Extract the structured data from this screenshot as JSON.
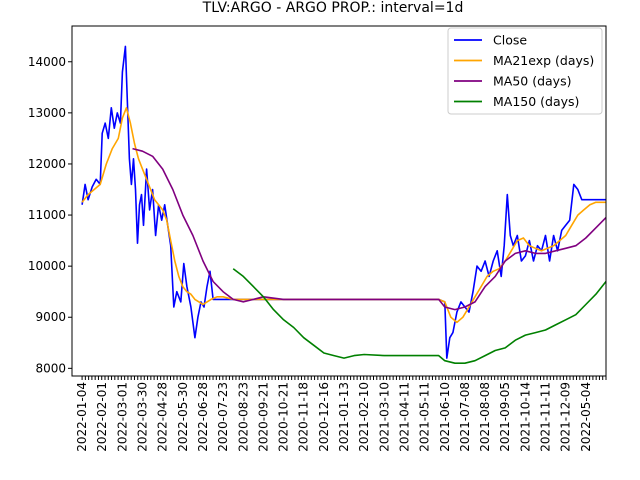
{
  "chart_data": {
    "type": "line",
    "title": "TLV:ARGO - ARGO PROP.: interval=1d",
    "xlabel": "",
    "ylabel": "",
    "ylim": [
      7850,
      14700
    ],
    "yticks": [
      8000,
      9000,
      10000,
      11000,
      12000,
      13000,
      14000
    ],
    "ytick_labels": [
      "8000",
      "9000",
      "10000",
      "11000",
      "12000",
      "13000",
      "14000"
    ],
    "xlim": [
      -0.5,
      26.0
    ],
    "xticks": [
      "2022-01-04",
      "2022-02-01",
      "2022-03-01",
      "2022-03-30",
      "2022-04-28",
      "2022-05-30",
      "2022-06-28",
      "2020-07-23",
      "2020-08-23",
      "2020-09-21",
      "2020-10-21",
      "2020-11-18",
      "2020-12-16",
      "2021-01-13",
      "2021-02-10",
      "2021-03-10",
      "2021-04-11",
      "2021-05-11",
      "2021-06-10",
      "2021-07-08",
      "2021-08-08",
      "2021-09-05",
      "2021-10-14",
      "2021-11-11",
      "2021-12-09",
      "2022-05-04"
    ],
    "grid": false,
    "legend": "top-right",
    "series": [
      {
        "name": "Close",
        "color": "#0000ff",
        "x": [
          0.0,
          0.15,
          0.3,
          0.5,
          0.7,
          0.9,
          1.0,
          1.15,
          1.3,
          1.45,
          1.6,
          1.75,
          1.9,
          2.0,
          2.15,
          2.25,
          2.35,
          2.45,
          2.55,
          2.65,
          2.75,
          2.85,
          2.95,
          3.05,
          3.2,
          3.35,
          3.5,
          3.65,
          3.8,
          3.95,
          4.1,
          4.25,
          4.4,
          4.55,
          4.7,
          4.9,
          5.05,
          5.2,
          5.4,
          5.6,
          5.75,
          5.9,
          6.05,
          6.2,
          6.35,
          6.5,
          6.65,
          6.8,
          6.95,
          7.1,
          7.3,
          7.5,
          7.7,
          8.0,
          9.0,
          10.0,
          11.0,
          12.0,
          13.0,
          14.0,
          15.0,
          16.0,
          17.0,
          17.7,
          18.0,
          18.1,
          18.25,
          18.4,
          18.6,
          18.8,
          19.0,
          19.2,
          19.4,
          19.6,
          19.8,
          20.0,
          20.2,
          20.4,
          20.6,
          20.8,
          20.95,
          21.1,
          21.25,
          21.4,
          21.6,
          21.8,
          22.0,
          22.2,
          22.4,
          22.6,
          22.8,
          23.0,
          23.2,
          23.4,
          23.6,
          23.8,
          24.0,
          24.2,
          24.4,
          24.6,
          24.8,
          25.0,
          25.2,
          25.5,
          26.0
        ],
        "y": [
          11200,
          11600,
          11300,
          11550,
          11700,
          11600,
          12600,
          12800,
          12500,
          13100,
          12700,
          13000,
          12800,
          13800,
          14300,
          13200,
          12100,
          11600,
          12100,
          11500,
          10450,
          11200,
          11400,
          10800,
          11900,
          11100,
          11500,
          10600,
          11200,
          10900,
          11200,
          10800,
          10400,
          9200,
          9500,
          9300,
          10050,
          9600,
          9200,
          8600,
          9000,
          9300,
          9200,
          9600,
          9900,
          9350,
          9350,
          9350,
          9350,
          9350,
          9350,
          9350,
          9350,
          9350,
          9350,
          9350,
          9350,
          9350,
          9350,
          9350,
          9350,
          9350,
          9350,
          9350,
          9300,
          8200,
          8600,
          8700,
          9100,
          9300,
          9200,
          9100,
          9500,
          10000,
          9900,
          10100,
          9800,
          10100,
          10300,
          9800,
          10400,
          11400,
          10600,
          10400,
          10600,
          10100,
          10200,
          10500,
          10100,
          10400,
          10300,
          10600,
          10100,
          10600,
          10300,
          10700,
          10800,
          10900,
          11600,
          11500,
          11300,
          11300,
          11300,
          11300,
          11300
        ]
      },
      {
        "name": "MA21exp (days)",
        "color": "#ffa500",
        "x": [
          0.0,
          0.3,
          0.6,
          0.9,
          1.2,
          1.5,
          1.8,
          2.0,
          2.2,
          2.4,
          2.6,
          2.8,
          3.0,
          3.2,
          3.4,
          3.6,
          3.8,
          4.0,
          4.2,
          4.4,
          4.6,
          4.8,
          5.0,
          5.2,
          5.4,
          5.6,
          5.8,
          6.0,
          6.2,
          6.4,
          6.7,
          7.0,
          7.5,
          8.0,
          9.0,
          10.0,
          11.0,
          12.0,
          13.0,
          14.0,
          15.0,
          16.0,
          17.0,
          17.7,
          18.0,
          18.3,
          18.6,
          18.9,
          19.2,
          19.5,
          19.8,
          20.1,
          20.4,
          20.7,
          21.0,
          21.3,
          21.6,
          21.9,
          22.2,
          22.5,
          22.8,
          23.1,
          23.4,
          23.7,
          24.0,
          24.3,
          24.6,
          24.9,
          25.2,
          25.5,
          26.0
        ],
        "y": [
          11250,
          11400,
          11500,
          11600,
          12000,
          12300,
          12500,
          12900,
          13100,
          12800,
          12400,
          12100,
          11900,
          11700,
          11500,
          11300,
          11200,
          11100,
          10900,
          10500,
          10100,
          9800,
          9600,
          9500,
          9450,
          9350,
          9300,
          9250,
          9300,
          9350,
          9400,
          9400,
          9350,
          9350,
          9350,
          9350,
          9350,
          9350,
          9350,
          9350,
          9350,
          9350,
          9350,
          9350,
          9300,
          9000,
          8900,
          9000,
          9200,
          9400,
          9600,
          9800,
          9900,
          9950,
          10100,
          10300,
          10500,
          10550,
          10400,
          10350,
          10300,
          10350,
          10400,
          10500,
          10600,
          10800,
          11000,
          11100,
          11200,
          11250,
          11250
        ]
      },
      {
        "name": "MA50 (days)",
        "color": "#800080",
        "x": [
          2.5,
          3.0,
          3.5,
          4.0,
          4.5,
          5.0,
          5.5,
          6.0,
          6.5,
          7.0,
          7.5,
          8.0,
          8.5,
          9.0,
          10.0,
          11.0,
          12.0,
          13.0,
          14.0,
          15.0,
          16.0,
          17.0,
          17.7,
          18.0,
          18.5,
          19.0,
          19.5,
          20.0,
          20.5,
          21.0,
          21.5,
          22.0,
          22.5,
          23.0,
          23.5,
          24.0,
          24.5,
          25.0,
          25.5,
          26.0
        ],
        "y": [
          12300,
          12250,
          12150,
          11900,
          11500,
          11000,
          10600,
          10100,
          9700,
          9500,
          9350,
          9300,
          9350,
          9400,
          9350,
          9350,
          9350,
          9350,
          9350,
          9350,
          9350,
          9350,
          9350,
          9200,
          9150,
          9200,
          9300,
          9600,
          9800,
          10100,
          10250,
          10300,
          10250,
          10250,
          10300,
          10350,
          10400,
          10550,
          10750,
          10950
        ]
      },
      {
        "name": "MA150 (days)",
        "color": "#008000",
        "x": [
          7.5,
          8.0,
          8.5,
          9.0,
          9.5,
          10.0,
          10.5,
          11.0,
          11.5,
          12.0,
          12.5,
          13.0,
          13.5,
          14.0,
          15.0,
          16.0,
          17.0,
          17.7,
          18.0,
          18.5,
          19.0,
          19.5,
          20.0,
          20.5,
          21.0,
          21.5,
          22.0,
          22.5,
          23.0,
          23.5,
          24.0,
          24.5,
          25.0,
          25.5,
          26.0
        ],
        "y": [
          9950,
          9800,
          9600,
          9400,
          9150,
          8950,
          8800,
          8600,
          8450,
          8300,
          8250,
          8200,
          8250,
          8270,
          8250,
          8250,
          8250,
          8250,
          8150,
          8100,
          8100,
          8150,
          8250,
          8350,
          8400,
          8550,
          8650,
          8700,
          8750,
          8850,
          8950,
          9050,
          9250,
          9450,
          9700
        ]
      }
    ]
  }
}
